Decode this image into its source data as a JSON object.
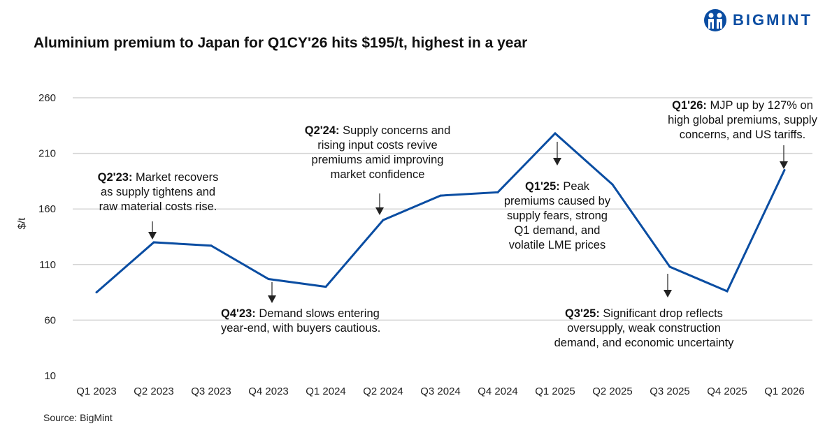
{
  "title": "Aluminium premium to Japan for Q1CY'26 hits $195/t, highest in a year",
  "logo": {
    "text": "BIGMINT",
    "color": "#0a4da2"
  },
  "source": "Source: BigMint",
  "chart_data": {
    "type": "line",
    "title": "Aluminium premium to Japan for Q1CY'26 hits $195/t, highest in a year",
    "xlabel": "",
    "ylabel": "$/t",
    "ylim": [
      10,
      260
    ],
    "yticks": [
      "10",
      "60",
      "110",
      "160",
      "210",
      "260"
    ],
    "grid": true,
    "line_color": "#0a4da2",
    "categories": [
      "Q1 2023",
      "Q2 2023",
      "Q3 2023",
      "Q4 2023",
      "Q1 2024",
      "Q2 2024",
      "Q3 2024",
      "Q4 2024",
      "Q1 2025",
      "Q2 2025",
      "Q3 2025",
      "Q4 2025",
      "Q1 2026"
    ],
    "values": [
      85,
      130,
      127,
      97,
      90,
      150,
      172,
      175,
      228,
      182,
      108,
      86,
      195
    ],
    "annotations": [
      {
        "key": "q2-23",
        "label": "Q2'23:",
        "lines": [
          "Market recovers",
          "as supply tightens and",
          "raw material costs rise."
        ]
      },
      {
        "key": "q4-23",
        "label": "Q4'23:",
        "lines": [
          "Demand slows entering",
          "year-end, with buyers cautious."
        ]
      },
      {
        "key": "q2-24",
        "label": "Q2'24:",
        "lines": [
          "Supply concerns and",
          "rising input costs revive",
          "premiums amid improving",
          "market confidence"
        ]
      },
      {
        "key": "q1-25",
        "label": "Q1'25:",
        "lines": [
          "Peak",
          "premiums caused by",
          "supply fears, strong",
          "Q1 demand, and",
          "volatile LME prices"
        ]
      },
      {
        "key": "q3-25",
        "label": "Q3'25:",
        "lines": [
          "Significant drop reflects",
          "oversupply, weak construction",
          "demand, and economic uncertainty"
        ]
      },
      {
        "key": "q1-26",
        "label": "Q1'26:",
        "lines": [
          "MJP up by 127% on",
          "high global premiums, supply",
          "concerns, and US tariffs."
        ]
      }
    ]
  }
}
